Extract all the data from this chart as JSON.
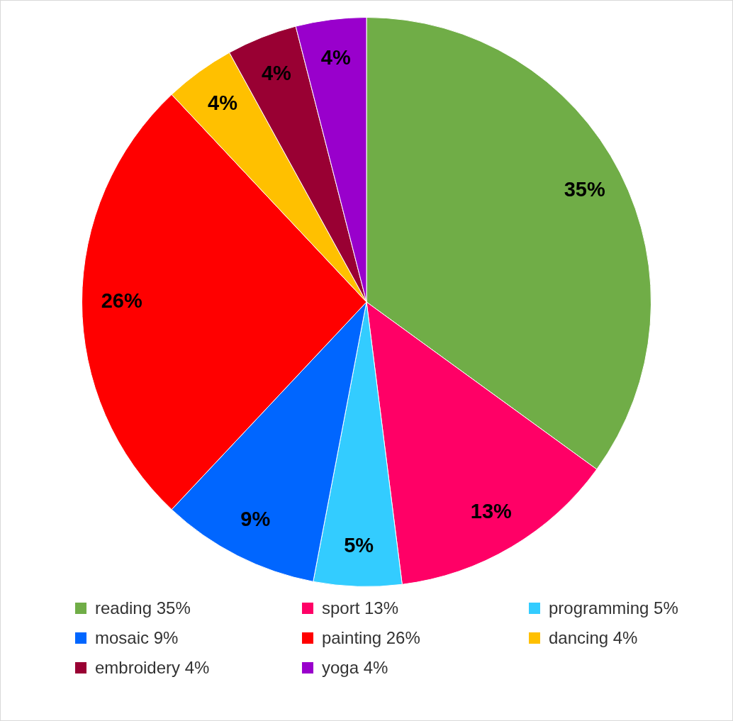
{
  "chart_data": {
    "type": "pie",
    "categories": [
      "reading 35%",
      "sport 13%",
      "programming 5%",
      "mosaic 9%",
      "painting 26%",
      "dancing 4%",
      "embroidery 4%",
      "yoga 4%"
    ],
    "values": [
      35,
      13,
      5,
      9,
      26,
      4,
      4,
      4
    ],
    "colors": [
      "#70ad47",
      "#ff0066",
      "#33ccff",
      "#0066ff",
      "#ff0000",
      "#ffc000",
      "#990033",
      "#9900cc"
    ],
    "value_labels": [
      "35%",
      "13%",
      "5%",
      "9%",
      "26%",
      "4%",
      "4%",
      "4%"
    ],
    "legend": "bottom"
  }
}
